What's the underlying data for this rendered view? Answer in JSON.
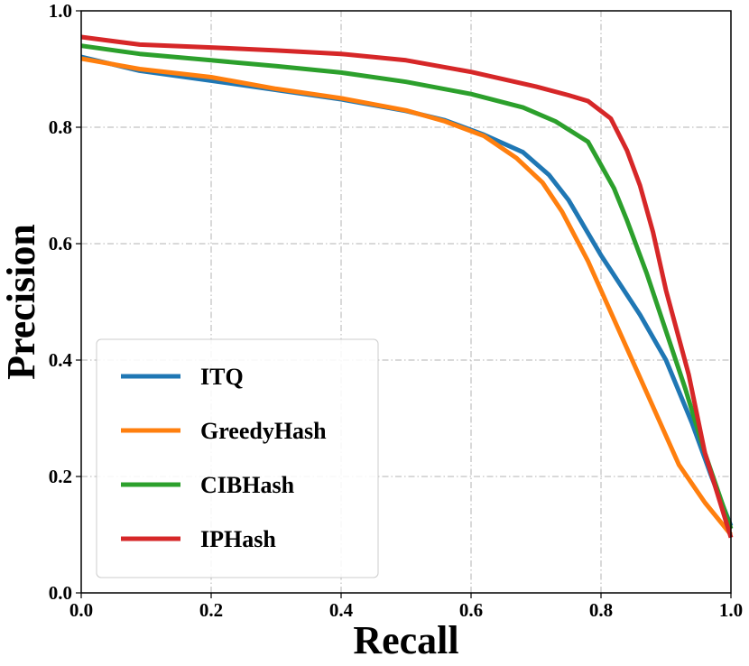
{
  "chart_data": {
    "type": "line",
    "title": "",
    "xlabel": "Recall",
    "ylabel": "Precision",
    "xlim": [
      0.0,
      1.0
    ],
    "ylim": [
      0.0,
      1.0
    ],
    "xticks": [
      "0.0",
      "0.2",
      "0.4",
      "0.6",
      "0.8",
      "1.0"
    ],
    "yticks": [
      "0.0",
      "0.2",
      "0.4",
      "0.6",
      "0.8",
      "1.0"
    ],
    "grid": true,
    "legend_position": "lower-left",
    "series": [
      {
        "name": "ITQ",
        "color": "#1f77b4",
        "x": [
          0.0,
          0.09,
          0.2,
          0.3,
          0.4,
          0.5,
          0.56,
          0.62,
          0.68,
          0.72,
          0.75,
          0.8,
          0.86,
          0.9,
          0.94,
          0.97,
          1.0
        ],
        "y": [
          0.921,
          0.897,
          0.88,
          0.864,
          0.848,
          0.828,
          0.812,
          0.787,
          0.757,
          0.718,
          0.675,
          0.58,
          0.478,
          0.4,
          0.292,
          0.2,
          0.115
        ]
      },
      {
        "name": "GreedyHash",
        "color": "#ff7f0e",
        "x": [
          0.0,
          0.09,
          0.2,
          0.3,
          0.4,
          0.5,
          0.56,
          0.62,
          0.67,
          0.71,
          0.74,
          0.78,
          0.82,
          0.86,
          0.9,
          0.92,
          0.96,
          1.0
        ],
        "y": [
          0.918,
          0.9,
          0.886,
          0.866,
          0.85,
          0.829,
          0.81,
          0.785,
          0.747,
          0.705,
          0.655,
          0.57,
          0.47,
          0.37,
          0.27,
          0.22,
          0.155,
          0.1
        ]
      },
      {
        "name": "CIBHash",
        "color": "#2ca02c",
        "x": [
          0.0,
          0.09,
          0.2,
          0.3,
          0.4,
          0.5,
          0.6,
          0.68,
          0.73,
          0.78,
          0.8,
          0.82,
          0.84,
          0.87,
          0.9,
          0.93,
          0.96,
          1.0
        ],
        "y": [
          0.94,
          0.926,
          0.915,
          0.905,
          0.894,
          0.878,
          0.857,
          0.834,
          0.81,
          0.775,
          0.735,
          0.695,
          0.64,
          0.55,
          0.45,
          0.35,
          0.24,
          0.11
        ]
      },
      {
        "name": "IPHash",
        "color": "#d62728",
        "x": [
          0.0,
          0.09,
          0.2,
          0.3,
          0.4,
          0.5,
          0.6,
          0.7,
          0.75,
          0.78,
          0.815,
          0.84,
          0.86,
          0.88,
          0.9,
          0.935,
          0.96,
          1.0
        ],
        "y": [
          0.955,
          0.942,
          0.937,
          0.932,
          0.926,
          0.915,
          0.895,
          0.87,
          0.855,
          0.845,
          0.815,
          0.76,
          0.7,
          0.62,
          0.52,
          0.375,
          0.24,
          0.095
        ]
      }
    ]
  }
}
